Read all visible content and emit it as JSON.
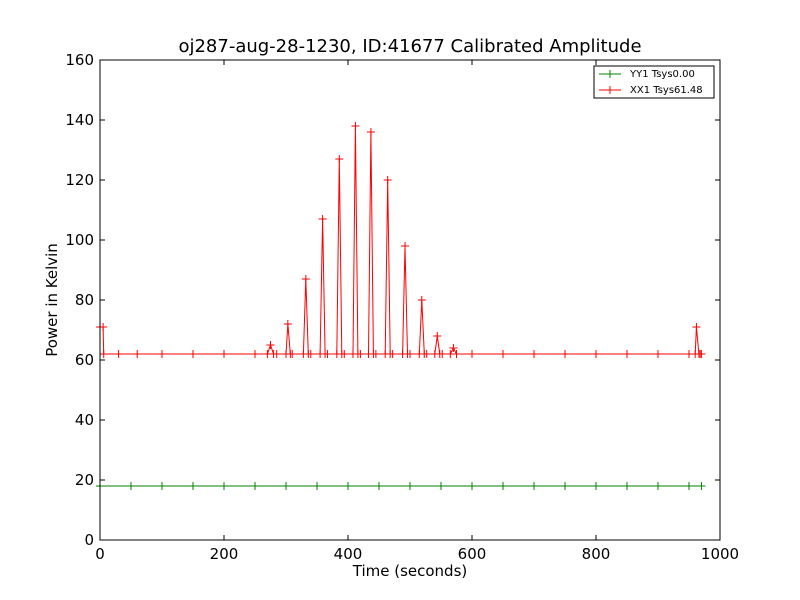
{
  "chart_data": {
    "type": "line",
    "title": "oj287-aug-28-1230, ID:41677 Calibrated Amplitude",
    "xlabel": "Time (seconds)",
    "ylabel": "Power in Kelvin",
    "xlim": [
      0,
      1000
    ],
    "ylim": [
      0,
      160
    ],
    "xticks": [
      0,
      200,
      400,
      600,
      800,
      1000
    ],
    "yticks": [
      0,
      20,
      40,
      60,
      80,
      100,
      120,
      140,
      160
    ],
    "xtick_labels": [
      "0",
      "200",
      "400",
      "600",
      "800",
      "1000"
    ],
    "ytick_labels": [
      "0",
      "20",
      "40",
      "60",
      "80",
      "100",
      "120",
      "140",
      "160"
    ],
    "grid": false,
    "legend_position": "top-right",
    "marker": "+",
    "series": [
      {
        "name": "YY1 Tsys0.00",
        "color": "#008000",
        "x": [
          0,
          50,
          100,
          150,
          200,
          250,
          300,
          350,
          400,
          450,
          500,
          550,
          600,
          650,
          700,
          750,
          800,
          850,
          900,
          950,
          970
        ],
        "y": [
          18,
          18,
          18,
          18,
          18,
          18,
          18,
          18,
          18,
          18,
          18,
          18,
          18,
          18,
          18,
          18,
          18,
          18,
          18,
          18,
          18
        ]
      },
      {
        "name": "XX1 Tsys61.48",
        "color": "#ff0000",
        "x": [
          0,
          5,
          6,
          30,
          60,
          100,
          150,
          200,
          250,
          270,
          275,
          280,
          285,
          300,
          303,
          307,
          310,
          328,
          332,
          336,
          340,
          355,
          359,
          363,
          367,
          382,
          386,
          390,
          394,
          408,
          412,
          416,
          420,
          433,
          437,
          441,
          445,
          460,
          464,
          468,
          472,
          488,
          492,
          496,
          500,
          515,
          519,
          523,
          527,
          540,
          544,
          548,
          552,
          565,
          570,
          575,
          600,
          650,
          700,
          750,
          800,
          850,
          900,
          950,
          960,
          962,
          966,
          968,
          970
        ],
        "y": [
          71,
          71,
          62,
          62,
          62,
          62,
          62,
          62,
          62,
          62,
          65,
          62,
          62,
          62,
          72,
          62,
          62,
          62,
          87,
          62,
          62,
          62,
          107,
          62,
          62,
          62,
          127,
          62,
          62,
          62,
          138,
          62,
          62,
          62,
          136,
          62,
          62,
          62,
          120,
          62,
          62,
          62,
          98,
          62,
          62,
          62,
          80,
          62,
          62,
          62,
          68,
          62,
          62,
          62,
          64,
          62,
          62,
          62,
          62,
          62,
          62,
          62,
          62,
          62,
          62,
          71,
          62,
          62,
          62
        ]
      }
    ]
  }
}
